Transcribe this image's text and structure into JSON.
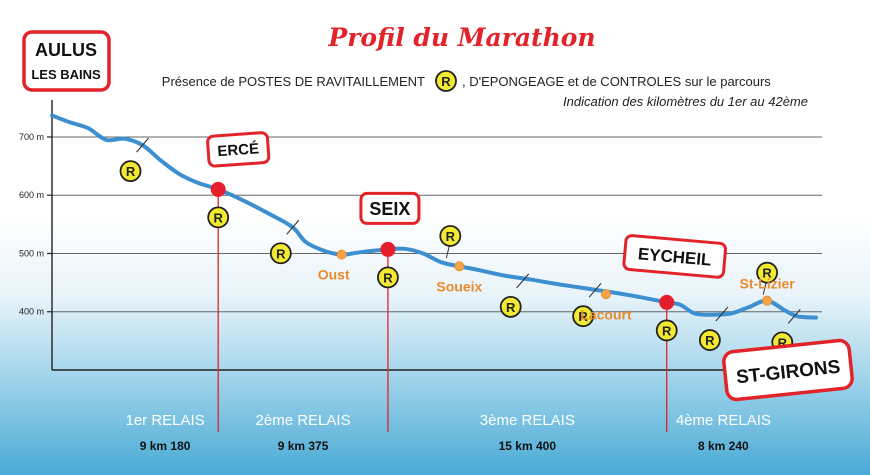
{
  "chart_data": {
    "type": "line",
    "title": "Profil du Marathon",
    "subtitle_line1_pre": "Présence de POSTES DE RAVITAILLEMENT",
    "subtitle_line1_post": ", D'EPONGEAGE et de CONTROLES sur le parcours",
    "subtitle_line2": "Indication des kilomètres du 1er au 42ème",
    "marker_symbol": "R",
    "x_unit": "km",
    "xlim": [
      0,
      42.2
    ],
    "ylim": [
      300,
      760
    ],
    "yticks": [
      {
        "value": 700,
        "label": "700 m"
      },
      {
        "value": 600,
        "label": "600 m"
      },
      {
        "value": 500,
        "label": "500 m"
      },
      {
        "value": 400,
        "label": "400 m"
      }
    ],
    "grid": true,
    "series": [
      {
        "x": [
          0,
          1.0,
          2.0,
          3.0,
          4.0,
          5.0,
          6.0,
          7.0,
          8.0,
          9.18,
          10.5,
          12.0,
          13.3,
          14.0,
          15.0,
          16.0,
          17.0,
          18.555,
          19.5,
          20.5,
          21.5,
          22.5,
          23.5,
          25.0,
          26.5,
          28.0,
          29.5,
          31.0,
          32.5,
          33.955,
          34.7,
          35.5,
          36.5,
          37.5,
          38.5,
          39.5,
          40.5,
          41.2,
          42.2
        ],
        "y": [
          737,
          725,
          715,
          695,
          697,
          686,
          660,
          637,
          622,
          610,
          592,
          568,
          545,
          520,
          505,
          498,
          502,
          507,
          508,
          500,
          485,
          478,
          472,
          462,
          455,
          447,
          440,
          433,
          425,
          416,
          412,
          397,
          395,
          397,
          408,
          419,
          402,
          392,
          390
        ]
      }
    ],
    "start_label": {
      "line1": "AULUS",
      "line2": "LES BAINS",
      "x": 0,
      "y": 737
    },
    "finish_label": {
      "text": "ST-GIRONS",
      "x": 42.2,
      "y": 390
    },
    "relay_points": [
      {
        "name": "ERCÉ",
        "x": 9.18,
        "y": 610
      },
      {
        "name": "SEIX",
        "x": 18.555,
        "y": 507
      },
      {
        "name": "EYCHEIL",
        "x": 33.955,
        "y": 416
      }
    ],
    "villages": [
      {
        "name": "Oust",
        "x": 16.0,
        "y": 498
      },
      {
        "name": "Soueix",
        "x": 22.5,
        "y": 478
      },
      {
        "name": "Lacourt",
        "x": 30.6,
        "y": 430
      },
      {
        "name": "St-Lizier",
        "x": 39.5,
        "y": 419
      }
    ],
    "station_markers": [
      {
        "x": 5.0,
        "y": 686
      },
      {
        "x": 9.18,
        "y": 610
      },
      {
        "x": 13.3,
        "y": 545
      },
      {
        "x": 18.555,
        "y": 507
      },
      {
        "x": 22.0,
        "y": 482
      },
      {
        "x": 26.0,
        "y": 453
      },
      {
        "x": 30.0,
        "y": 437
      },
      {
        "x": 33.955,
        "y": 416
      },
      {
        "x": 37.0,
        "y": 396
      },
      {
        "x": 39.5,
        "y": 419
      },
      {
        "x": 41.0,
        "y": 392
      }
    ],
    "relays": [
      {
        "label": "1er RELAIS",
        "distance": "9 km 180"
      },
      {
        "label": "2ème RELAIS",
        "distance": "9 km 375"
      },
      {
        "label": "3ème RELAIS",
        "distance": "15 km 400"
      },
      {
        "label": "4ème RELAIS",
        "distance": "8 km 240"
      }
    ]
  }
}
